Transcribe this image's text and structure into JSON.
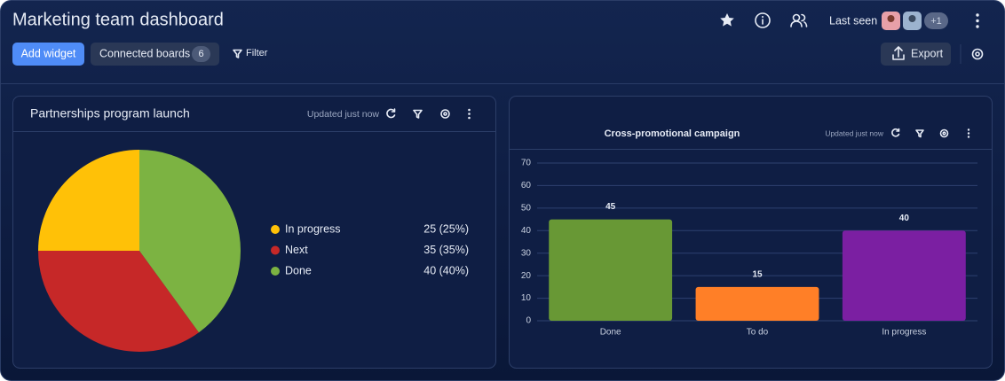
{
  "header": {
    "title": "Marketing team dashboard",
    "add_widget": "Add widget",
    "connected_boards": "Connected boards",
    "connected_count": 6,
    "filter": "Filter",
    "last_seen": "Last seen",
    "more_viewers": "+1",
    "export": "Export"
  },
  "chart_data": [
    {
      "type": "pie",
      "title": "Partnerships program launch",
      "status": "Updated just now",
      "categories": [
        "In progress",
        "Next",
        "Done"
      ],
      "values": [
        25,
        35,
        40
      ],
      "value_labels": [
        "25 (25%)",
        "35 (35%)",
        "40 (40%)"
      ],
      "colors": [
        "#ffc107",
        "#c62828",
        "#7cb342"
      ]
    },
    {
      "type": "bar",
      "title": "Cross-promotional campaign",
      "status": "Updated just now",
      "categories": [
        "Done",
        "To do",
        "In progress"
      ],
      "values": [
        45,
        15,
        40
      ],
      "colors": [
        "#689835",
        "#ff7f27",
        "#7b1fa2"
      ],
      "ylim": [
        0,
        70
      ],
      "yticks": [
        0,
        10,
        20,
        30,
        40,
        50,
        60,
        70
      ],
      "grid": true
    }
  ]
}
